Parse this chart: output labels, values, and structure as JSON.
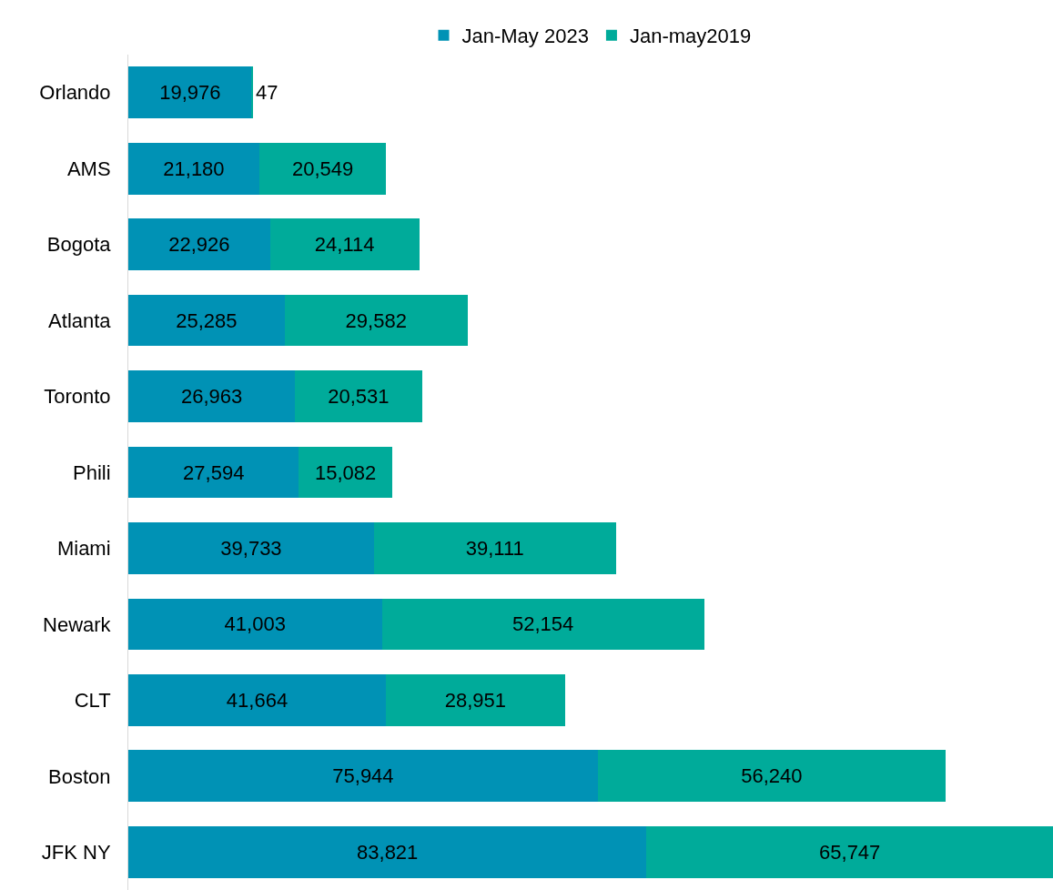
{
  "chart_data": {
    "type": "bar",
    "orientation": "horizontal",
    "stacked": true,
    "grid": false,
    "legend": "top",
    "categories": [
      "Orlando",
      "AMS",
      "Bogota",
      "Atlanta",
      "Toronto",
      "Phili",
      "Miami",
      "Newark",
      "CLT",
      "Boston",
      "JFK NY"
    ],
    "series": [
      {
        "name": "Jan-May 2023",
        "color": "#0092b5",
        "values": [
          19976,
          21180,
          22926,
          25285,
          26963,
          27594,
          39733,
          41003,
          41664,
          75944,
          83821
        ],
        "value_labels": [
          "19,976",
          "21,180",
          "22,926",
          "25,285",
          "26,963",
          "27,594",
          "39,733",
          "41,003",
          "41,664",
          "75,944",
          "83,821"
        ]
      },
      {
        "name": "Jan-may2019",
        "color": "#00ab9a",
        "values": [
          47,
          20549,
          24114,
          29582,
          20531,
          15082,
          39111,
          52154,
          28951,
          56240,
          65747
        ],
        "value_labels": [
          "47",
          "20,549",
          "24,114",
          "29,582",
          "20,531",
          "15,082",
          "39,111",
          "52,154",
          "28,951",
          "56,240",
          "65,747"
        ]
      }
    ]
  }
}
